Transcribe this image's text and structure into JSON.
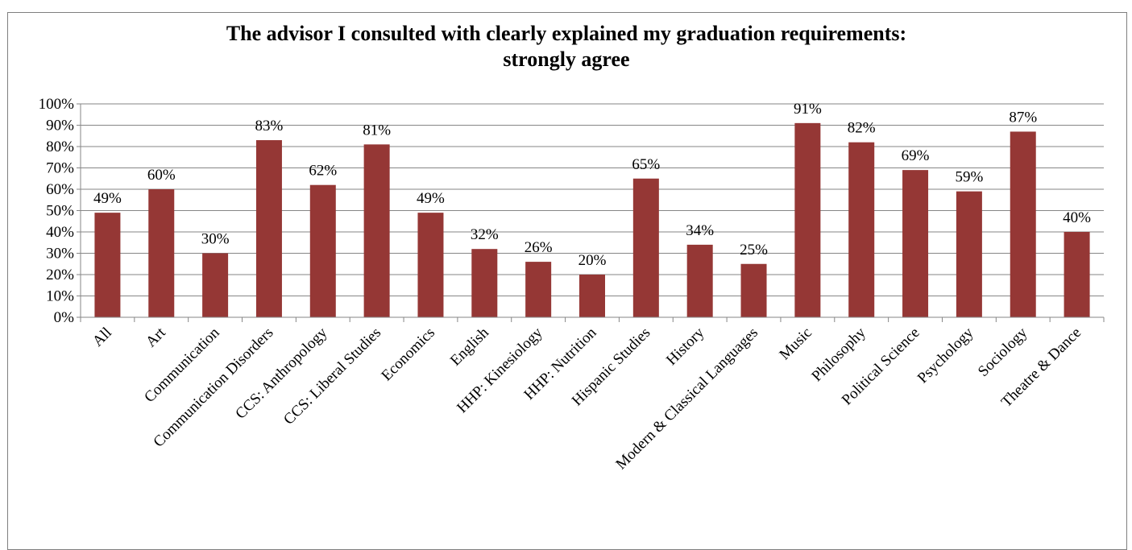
{
  "chart_data": {
    "type": "bar",
    "title_lines": [
      "The advisor I consulted with clearly explained my graduation requirements:",
      "strongly agree"
    ],
    "categories": [
      "All",
      "Art",
      "Communication",
      "Communication Disorders",
      "CCS: Anthropology",
      "CCS: Liberal Studies",
      "Economics",
      "English",
      "HHP: Kinesiology",
      "HHP: Nutrition",
      "Hispanic Studies",
      "History",
      "Modern & Classical Languages",
      "Music",
      "Philosophy",
      "Political Science",
      "Psychology",
      "Sociology",
      "Theatre & Dance"
    ],
    "values": [
      49,
      60,
      30,
      83,
      62,
      81,
      49,
      32,
      26,
      20,
      65,
      34,
      25,
      91,
      82,
      69,
      59,
      87,
      40
    ],
    "data_labels": [
      "49%",
      "60%",
      "30%",
      "83%",
      "62%",
      "81%",
      "49%",
      "32%",
      "26%",
      "20%",
      "65%",
      "34%",
      "25%",
      "91%",
      "82%",
      "69%",
      "59%",
      "87%",
      "40%"
    ],
    "y_ticks": [
      "0%",
      "10%",
      "20%",
      "30%",
      "40%",
      "50%",
      "60%",
      "70%",
      "80%",
      "90%",
      "100%"
    ],
    "ylim": [
      0,
      100
    ],
    "grid": true,
    "legend": "none",
    "bar_color": "#953735",
    "grid_color": "#868686"
  }
}
